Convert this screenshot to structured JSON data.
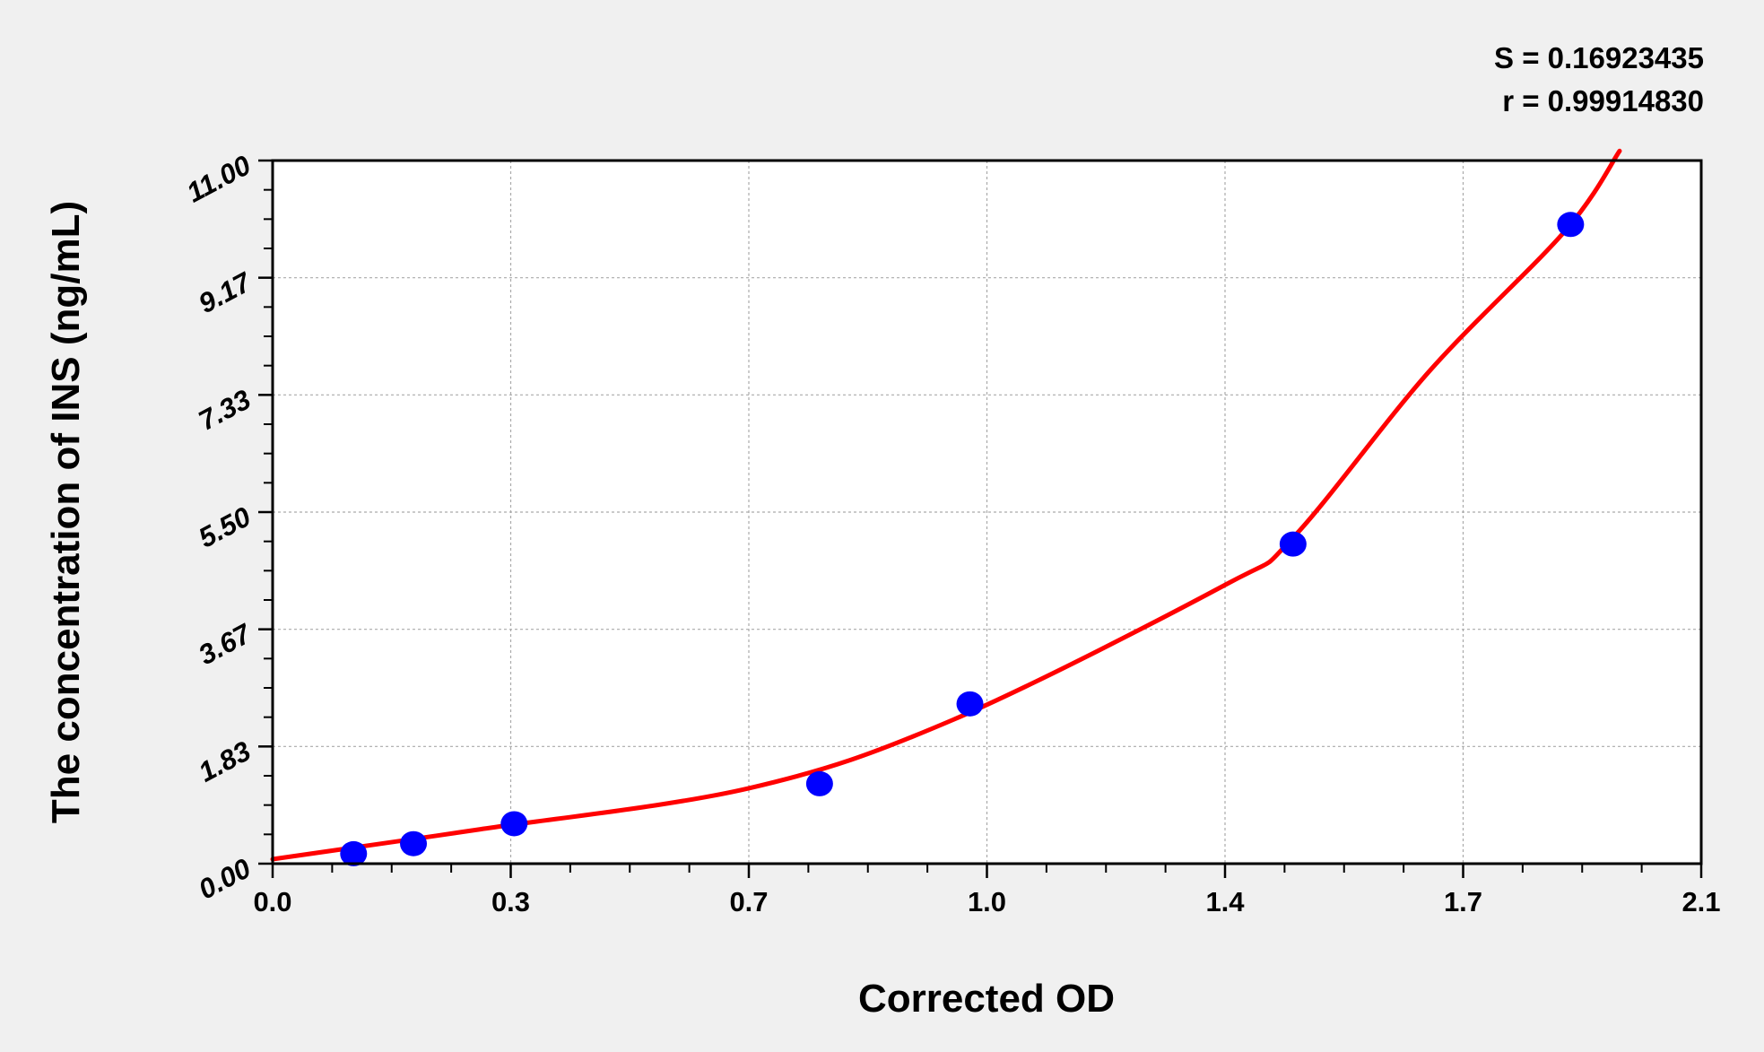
{
  "chart_data": {
    "type": "scatter",
    "title": "",
    "xlabel": "Corrected OD",
    "ylabel": "The concentration of INS (ng/mL)",
    "xlim": [
      0.0,
      2.1
    ],
    "ylim": [
      0.0,
      11.0
    ],
    "x_ticks": [
      "0.0",
      "0.3",
      "0.7",
      "1.0",
      "1.4",
      "1.7",
      "2.1"
    ],
    "y_ticks": [
      "0.00",
      "1.83",
      "3.67",
      "5.50",
      "7.33",
      "9.17",
      "11.00"
    ],
    "grid": true,
    "annotations": [
      "S = 0.16923435",
      "r = 0.99914830"
    ],
    "series": [
      {
        "type": "scatter",
        "color": "#0000ff",
        "points": [
          [
            0.119,
            0.156
          ],
          [
            0.207,
            0.313
          ],
          [
            0.355,
            0.625
          ],
          [
            0.804,
            1.25
          ],
          [
            1.025,
            2.5
          ],
          [
            1.5,
            5.0
          ],
          [
            1.908,
            10.0
          ]
        ]
      },
      {
        "type": "line",
        "color": "#ff0000",
        "points": [
          [
            0.0,
            0.07
          ],
          [
            0.3,
            0.53
          ],
          [
            0.7,
            1.18
          ],
          [
            1.0,
            2.25
          ],
          [
            1.4,
            4.36
          ],
          [
            1.5,
            5.1
          ],
          [
            1.7,
            7.7
          ],
          [
            1.9,
            9.9
          ],
          [
            1.98,
            11.15
          ]
        ]
      }
    ]
  }
}
